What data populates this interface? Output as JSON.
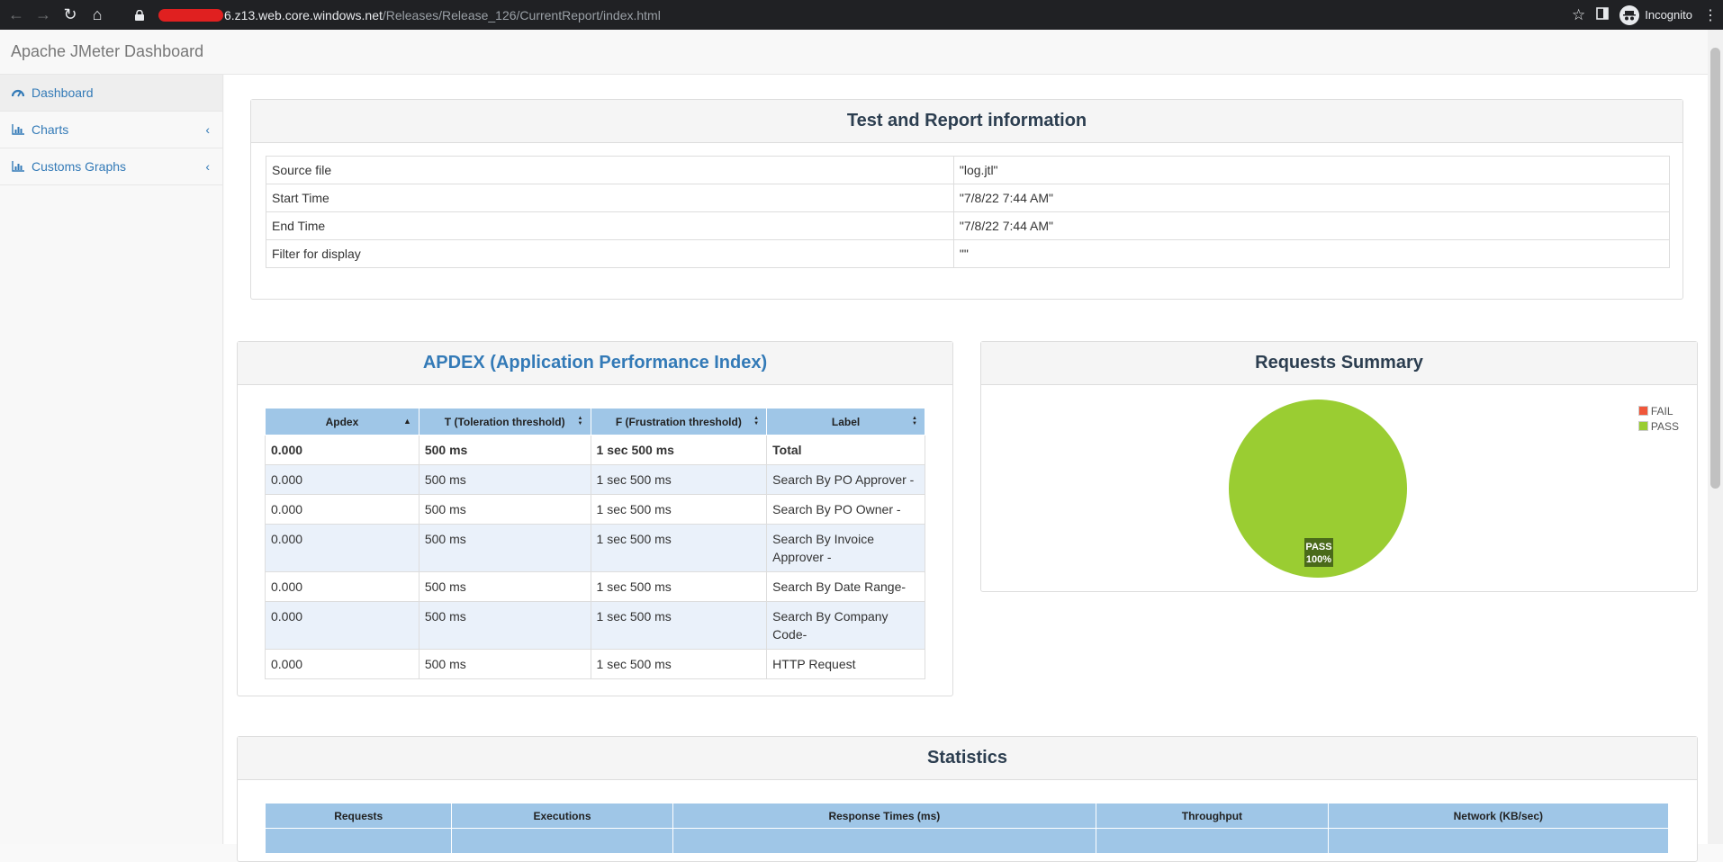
{
  "browser": {
    "url_host": "6.z13.web.core.windows.net",
    "url_path": "/Releases/Release_126/CurrentReport/index.html",
    "profile_label": "Incognito"
  },
  "app": {
    "title": "Apache JMeter Dashboard"
  },
  "sidebar": {
    "items": [
      {
        "label": "Dashboard"
      },
      {
        "label": "Charts"
      },
      {
        "label": "Customs Graphs"
      }
    ]
  },
  "info_panel": {
    "title": "Test and Report information",
    "rows": [
      {
        "key": "Source file",
        "value": "\"log.jtl\""
      },
      {
        "key": "Start Time",
        "value": "\"7/8/22 7:44 AM\""
      },
      {
        "key": "End Time",
        "value": "\"7/8/22 7:44 AM\""
      },
      {
        "key": "Filter for display",
        "value": "\"\""
      }
    ]
  },
  "apdex_panel": {
    "title": "APDEX (Application Performance Index)",
    "headers": [
      "Apdex",
      "T (Toleration threshold)",
      "F (Frustration threshold)",
      "Label"
    ],
    "rows": [
      [
        "0.000",
        "500 ms",
        "1 sec 500 ms",
        "Total"
      ],
      [
        "0.000",
        "500 ms",
        "1 sec 500 ms",
        "Search By PO Approver -"
      ],
      [
        "0.000",
        "500 ms",
        "1 sec 500 ms",
        "Search By PO Owner -"
      ],
      [
        "0.000",
        "500 ms",
        "1 sec 500 ms",
        "Search By Invoice Approver -"
      ],
      [
        "0.000",
        "500 ms",
        "1 sec 500 ms",
        "Search By Date Range-"
      ],
      [
        "0.000",
        "500 ms",
        "1 sec 500 ms",
        "Search By Company Code-"
      ],
      [
        "0.000",
        "500 ms",
        "1 sec 500 ms",
        "HTTP Request"
      ]
    ]
  },
  "summary_panel": {
    "title": "Requests Summary",
    "legend": [
      {
        "label": "FAIL",
        "color": "#f0573a"
      },
      {
        "label": "PASS",
        "color": "#9acd32"
      }
    ],
    "slice_label": "PASS",
    "slice_percent": "100%",
    "pass_fraction": 1.0
  },
  "stats_panel": {
    "title": "Statistics",
    "group_headers": [
      "Requests",
      "Executions",
      "Response Times (ms)",
      "Throughput",
      "Network (KB/sec)"
    ]
  }
}
